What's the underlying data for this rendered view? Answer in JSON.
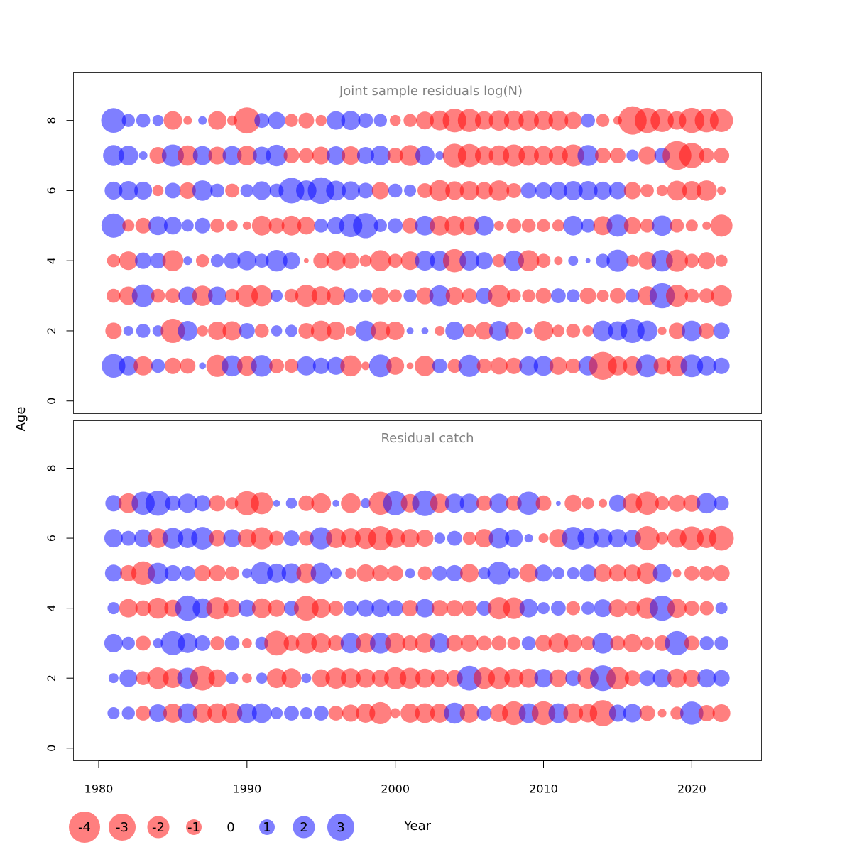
{
  "chart_data": [
    {
      "type": "scatter",
      "title": "Joint sample residuals log(N)",
      "xlabel": "",
      "ylabel": "Age",
      "xlim": [
        1978.3,
        2024.7
      ],
      "ylim": [
        -0.36,
        9.36
      ],
      "y_ticks": [
        0,
        2,
        4,
        6,
        8
      ],
      "grid": false,
      "years": [
        1981,
        1982,
        1983,
        1984,
        1985,
        1986,
        1987,
        1988,
        1989,
        1990,
        1991,
        1992,
        1993,
        1994,
        1995,
        1996,
        1997,
        1998,
        1999,
        2000,
        2001,
        2002,
        2003,
        2004,
        2005,
        2006,
        2007,
        2008,
        2009,
        2010,
        2011,
        2012,
        2013,
        2014,
        2015,
        2016,
        2017,
        2018,
        2019,
        2020,
        2021,
        2022
      ],
      "rows": [
        {
          "age": 8,
          "residuals": [
            2.5,
            0.7,
            0.8,
            0.5,
            -1.4,
            -0.3,
            0.3,
            -1.4,
            -0.4,
            -2.8,
            0.9,
            1.2,
            -0.7,
            -1.0,
            -0.5,
            1.4,
            1.5,
            0.9,
            0.7,
            -0.5,
            -0.7,
            -1.3,
            -1.6,
            -2.3,
            -2.2,
            -1.4,
            -1.7,
            -1.6,
            -1.7,
            -1.5,
            -1.6,
            -1.2,
            0.8,
            -0.7,
            -0.3,
            -3.3,
            -2.6,
            -2.2,
            -1.4,
            -2.6,
            -2.3,
            -2.2
          ]
        },
        {
          "age": 7,
          "residuals": [
            1.8,
            1.6,
            0.3,
            -1.2,
            2.0,
            -1.7,
            1.5,
            -1.3,
            1.5,
            -1.6,
            1.3,
            1.9,
            -1.0,
            -0.9,
            -1.3,
            1.4,
            -1.4,
            1.2,
            1.6,
            -1.0,
            -1.8,
            1.5,
            0.3,
            -2.3,
            -2.2,
            -1.4,
            -1.7,
            -2.0,
            -1.7,
            -1.5,
            -1.5,
            -2.0,
            1.8,
            -1.0,
            -1.0,
            0.6,
            -1.3,
            1.0,
            -3.4,
            -2.6,
            -0.9,
            -1.0
          ]
        },
        {
          "age": 6,
          "residuals": [
            1.3,
            1.5,
            1.3,
            -0.5,
            1.0,
            -1.1,
            1.7,
            0.8,
            -0.8,
            0.7,
            1.4,
            0.8,
            2.7,
            1.7,
            2.9,
            1.6,
            1.4,
            1.0,
            -1.2,
            0.8,
            0.6,
            -0.9,
            -1.8,
            -1.4,
            -1.5,
            -1.2,
            -1.7,
            -0.9,
            1.0,
            1.1,
            1.3,
            1.5,
            1.5,
            1.3,
            1.2,
            -1.2,
            -0.7,
            -0.5,
            -1.6,
            -1.5,
            -1.7,
            -0.3
          ]
        },
        {
          "age": 5,
          "residuals": [
            2.4,
            -0.6,
            -1.0,
            1.5,
            1.3,
            0.6,
            1.0,
            -0.8,
            -0.5,
            -0.3,
            -1.6,
            -1.0,
            -1.6,
            -1.3,
            0.8,
            1.2,
            2.2,
            2.6,
            0.7,
            0.9,
            -1.0,
            1.6,
            -1.6,
            -1.6,
            -1.5,
            1.6,
            -0.4,
            -0.9,
            -0.8,
            -0.7,
            -0.6,
            1.6,
            0.8,
            -1.5,
            2.0,
            -1.2,
            -0.8,
            1.7,
            -0.8,
            -0.6,
            -0.3,
            -2.0
          ]
        },
        {
          "age": 4,
          "residuals": [
            -0.7,
            -1.4,
            1.1,
            1.0,
            -1.8,
            0.3,
            -0.7,
            0.7,
            1.1,
            1.5,
            0.8,
            1.9,
            1.2,
            -0.1,
            -1.0,
            -1.5,
            -1.1,
            -0.6,
            -1.8,
            -0.8,
            -1.4,
            1.6,
            1.6,
            -2.2,
            1.6,
            1.2,
            -0.7,
            1.7,
            -1.8,
            -0.8,
            -0.3,
            0.4,
            0.1,
            0.8,
            2.0,
            -0.6,
            -1.3,
            1.9,
            -2.0,
            -0.8,
            -1.2,
            -0.6
          ]
        },
        {
          "age": 3,
          "residuals": [
            -0.8,
            -1.4,
            2.1,
            -0.8,
            -0.9,
            1.4,
            -1.7,
            1.4,
            -0.8,
            -2.0,
            -1.8,
            0.6,
            -0.8,
            -2.0,
            -1.5,
            -1.4,
            0.9,
            0.7,
            -1.2,
            -0.7,
            0.7,
            -1.2,
            1.8,
            -1.3,
            -0.9,
            1.1,
            -2.0,
            -0.8,
            -0.7,
            -1.0,
            0.9,
            0.7,
            -1.1,
            -0.6,
            -1.0,
            0.8,
            -1.5,
            2.6,
            -2.0,
            -0.8,
            -0.9,
            -1.8
          ]
        },
        {
          "age": 2,
          "residuals": [
            -1.1,
            0.4,
            0.8,
            0.5,
            -2.4,
            1.6,
            -0.5,
            -1.4,
            -1.5,
            1.0,
            -0.8,
            0.5,
            0.6,
            -1.0,
            -1.7,
            -1.4,
            -0.4,
            1.7,
            -1.5,
            -1.4,
            0.2,
            0.2,
            -0.4,
            1.4,
            -0.7,
            -1.3,
            1.6,
            -1.3,
            0.2,
            -1.6,
            -0.6,
            -0.8,
            -0.5,
            1.7,
            1.5,
            2.4,
            1.7,
            -0.3,
            -1.1,
            1.7,
            -1.0,
            1.1
          ]
        },
        {
          "age": 1,
          "residuals": [
            2.3,
            1.5,
            -1.5,
            0.8,
            -1.1,
            -1.0,
            0.2,
            -2.0,
            1.8,
            -1.6,
            1.9,
            -0.9,
            -0.8,
            1.5,
            1.1,
            1.3,
            -1.8,
            -0.3,
            2.1,
            -1.3,
            -0.2,
            -1.7,
            0.9,
            -0.8,
            2.0,
            -0.9,
            -1.2,
            -1.1,
            1.5,
            1.6,
            -1.3,
            -0.9,
            1.5,
            -3.2,
            -1.5,
            -1.5,
            2.1,
            -1.2,
            -1.8,
            2.1,
            1.5,
            1.1
          ]
        }
      ]
    },
    {
      "type": "scatter",
      "title": "Residual catch",
      "xlabel": "Year",
      "ylabel": "Age",
      "xlim": [
        1978.3,
        2024.7
      ],
      "ylim": [
        -0.36,
        9.36
      ],
      "x_ticks": [
        1980,
        1990,
        2000,
        2010,
        2020
      ],
      "y_ticks": [
        0,
        2,
        4,
        6,
        8
      ],
      "grid": false,
      "years": [
        1981,
        1982,
        1983,
        1984,
        1985,
        1986,
        1987,
        1988,
        1989,
        1990,
        1991,
        1992,
        1993,
        1994,
        1995,
        1996,
        1997,
        1998,
        1999,
        2000,
        2001,
        2002,
        2003,
        2004,
        2005,
        2006,
        2007,
        2008,
        2009,
        2010,
        2011,
        2012,
        2013,
        2014,
        2015,
        2016,
        2017,
        2018,
        2019,
        2020,
        2021,
        2022
      ],
      "rows": [
        {
          "age": 7,
          "residuals": [
            1.1,
            -1.6,
            2.2,
            2.6,
            1.0,
            1.5,
            1.1,
            -1.1,
            -0.6,
            -2.4,
            -2.0,
            0.2,
            0.5,
            -1.0,
            -1.6,
            0.2,
            -1.6,
            0.4,
            -2.2,
            2.4,
            -1.4,
            2.7,
            -1.5,
            1.5,
            1.5,
            -1.0,
            1.5,
            -1.0,
            2.2,
            -1.0,
            0.1,
            -1.2,
            -0.6,
            -0.3,
            1.2,
            -1.5,
            -2.2,
            -0.8,
            -1.2,
            -1.2,
            1.7,
            0.9
          ]
        },
        {
          "age": 6,
          "residuals": [
            1.4,
            0.9,
            1.3,
            -1.6,
            1.8,
            1.6,
            2.1,
            -1.1,
            1.3,
            -1.4,
            -2.0,
            -0.9,
            1.0,
            -0.9,
            2.0,
            -1.6,
            -1.6,
            -1.9,
            -2.4,
            -1.6,
            -1.4,
            -1.2,
            0.5,
            0.9,
            -0.7,
            -1.4,
            1.7,
            1.3,
            0.3,
            -0.4,
            -1.4,
            2.1,
            1.8,
            1.5,
            1.4,
            1.2,
            -2.4,
            -0.6,
            -1.5,
            -2.3,
            -1.6,
            -2.5
          ]
        },
        {
          "age": 5,
          "residuals": [
            1.2,
            -1.1,
            -2.3,
            1.8,
            1.1,
            0.9,
            -1.1,
            -1.1,
            -0.8,
            0.4,
            2.0,
            1.5,
            1.6,
            -1.6,
            1.8,
            0.5,
            -0.5,
            -1.3,
            -1.1,
            -1.0,
            0.4,
            -0.8,
            0.9,
            1.1,
            -1.4,
            0.6,
            2.2,
            0.5,
            -1.4,
            1.2,
            0.6,
            0.6,
            1.2,
            -1.3,
            -1.2,
            -1.2,
            -1.8,
            1.4,
            -0.3,
            -0.9,
            -0.9,
            -1.1
          ]
        },
        {
          "age": 4,
          "residuals": [
            0.6,
            -1.4,
            -1.0,
            -1.8,
            -1.2,
            2.6,
            1.6,
            -2.0,
            -1.3,
            1.2,
            -1.6,
            -1.2,
            0.9,
            -2.5,
            -1.5,
            -0.9,
            0.9,
            1.2,
            1.3,
            1.1,
            -1.1,
            1.4,
            -1.1,
            -1.1,
            -1.0,
            0.9,
            -2.0,
            -1.9,
            1.4,
            0.6,
            0.9,
            -0.8,
            0.7,
            1.3,
            -1.3,
            -0.9,
            -1.9,
            2.6,
            -1.5,
            -0.9,
            -0.8,
            0.6
          ]
        },
        {
          "age": 3,
          "residuals": [
            1.4,
            0.7,
            -0.9,
            0.4,
            2.4,
            1.6,
            1.0,
            -0.8,
            0.9,
            -0.4,
            0.7,
            -2.5,
            -1.0,
            -1.8,
            -1.6,
            -1.0,
            1.7,
            -1.6,
            1.8,
            -1.7,
            -1.0,
            -1.6,
            1.6,
            -1.1,
            -1.2,
            -0.9,
            -0.9,
            -0.7,
            0.8,
            -1.1,
            -1.6,
            -1.3,
            -0.8,
            1.8,
            -0.9,
            -1.4,
            -0.7,
            -1.0,
            2.4,
            -0.9,
            0.8,
            0.8
          ]
        },
        {
          "age": 2,
          "residuals": [
            0.4,
            1.3,
            -0.8,
            -1.9,
            -1.6,
            1.8,
            -2.5,
            -1.3,
            0.6,
            -0.4,
            0.5,
            -1.6,
            -1.6,
            0.4,
            -1.3,
            -1.8,
            -1.6,
            -1.5,
            -1.2,
            -2.0,
            -1.8,
            -1.5,
            -1.3,
            -1.1,
            2.5,
            -1.9,
            -1.9,
            -1.5,
            -1.5,
            1.4,
            -1.3,
            1.0,
            -1.8,
            2.7,
            -2.1,
            -1.0,
            1.0,
            1.4,
            -1.5,
            -1.2,
            1.4,
            1.1
          ]
        },
        {
          "age": 1,
          "residuals": [
            0.6,
            0.7,
            -0.9,
            1.3,
            -1.5,
            1.6,
            -1.5,
            -1.6,
            -1.7,
            1.6,
            1.6,
            0.6,
            0.9,
            0.6,
            0.9,
            -0.9,
            -1.2,
            -1.5,
            -2.0,
            -0.4,
            -1.5,
            -1.6,
            -1.5,
            1.8,
            -1.5,
            0.9,
            -1.3,
            -2.3,
            1.6,
            -2.3,
            1.6,
            -1.6,
            -1.4,
            -2.8,
            1.2,
            1.4,
            -1.0,
            -0.3,
            -0.7,
            2.2,
            -1.1,
            -1.3
          ]
        }
      ]
    }
  ],
  "legend": {
    "items": [
      {
        "label": "-4",
        "value": -4
      },
      {
        "label": "-3",
        "value": -3
      },
      {
        "label": "-2",
        "value": -2
      },
      {
        "label": "-1",
        "value": -1
      },
      {
        "label": "0",
        "value": 0
      },
      {
        "label": "1",
        "value": 1
      },
      {
        "label": "2",
        "value": 2
      },
      {
        "label": "3",
        "value": 3
      }
    ],
    "title": "Year"
  },
  "colors": {
    "negative_joint": "#ff0000",
    "positive_joint": "#0000ff",
    "negative_catch": "#ff0000",
    "positive_catch": "#0000ff",
    "legend_negative": "#ff0000",
    "legend_positive": "#0000ff"
  }
}
